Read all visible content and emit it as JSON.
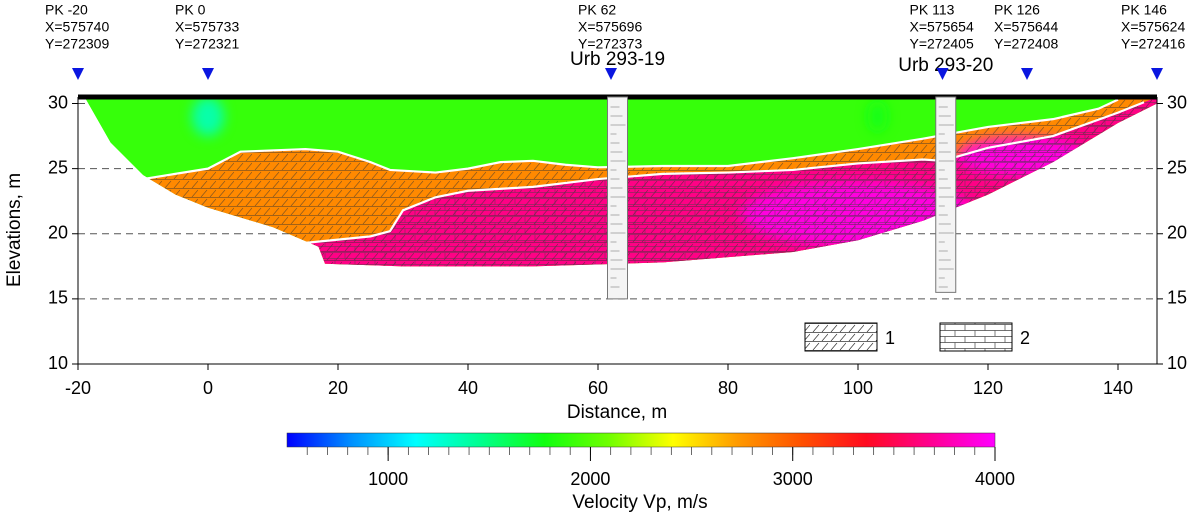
{
  "chart_data": {
    "type": "tomography",
    "xlabel": "Distance, m",
    "ylabel": "Elevations, m",
    "xlim": [
      -20,
      146
    ],
    "ylim": [
      10,
      30.5
    ],
    "xticks": [
      -20,
      0,
      20,
      40,
      60,
      80,
      100,
      120,
      140
    ],
    "yticks": [
      10,
      15,
      20,
      25,
      30
    ],
    "grid": true,
    "colorbar": {
      "label": "Velocity Vp, m/s",
      "clim": [
        500,
        4000
      ],
      "ticks": [
        1000,
        2000,
        3000,
        4000
      ],
      "colormap": [
        "#0000ff",
        "#0090ff",
        "#00ffff",
        "#00ff90",
        "#10ff10",
        "#70ff00",
        "#ffff00",
        "#ff9a00",
        "#ff5000",
        "#ff0a20",
        "#ff0090",
        "#ff00ff"
      ]
    },
    "model_outline": {
      "x": [
        -19,
        146,
        146,
        140,
        130,
        120,
        110,
        100,
        90,
        70,
        50,
        30,
        18,
        17,
        10,
        0,
        -5,
        -10,
        -15
      ],
      "y": [
        30.5,
        30.5,
        30,
        28.5,
        25.5,
        23,
        21,
        19.5,
        18.6,
        17.8,
        17.5,
        17.5,
        17.7,
        19,
        20.5,
        22,
        23,
        24.5,
        27
      ]
    },
    "layers": [
      {
        "velocity": 1900
      },
      {
        "velocity": 2800,
        "hatch": "slant"
      },
      {
        "velocity": 3650,
        "hatch": "brick"
      }
    ],
    "boundaries": [
      {
        "x": [
          -10,
          0,
          5,
          15,
          20,
          25,
          28,
          35,
          40,
          45,
          50,
          55,
          60,
          70,
          80,
          90,
          100,
          110,
          120,
          130,
          137,
          140
        ],
        "y": [
          24.2,
          25,
          26.3,
          26.5,
          26.3,
          25.5,
          24.9,
          24.7,
          25,
          25.5,
          25.6,
          25.3,
          25.1,
          25.2,
          25.2,
          25.8,
          26.5,
          27.3,
          28.2,
          28.8,
          29.6,
          30.3
        ]
      },
      {
        "x": [
          15,
          25,
          28,
          30,
          35,
          40,
          50,
          60,
          70,
          80,
          90,
          100,
          110,
          113,
          120,
          130,
          140,
          144
        ],
        "y": [
          19.3,
          19.8,
          20.2,
          21.8,
          22.8,
          23.3,
          23.6,
          24.2,
          24.6,
          24.7,
          24.9,
          25.4,
          25.7,
          25.6,
          26.6,
          27.5,
          29.3,
          30.1
        ]
      }
    ],
    "anomalies": [
      {
        "x": 0,
        "y": 29,
        "rx": 2.5,
        "ry": 1.5,
        "velocity": 1300
      },
      {
        "x": 103,
        "y": 29,
        "rx": 1.5,
        "ry": 1.2,
        "velocity": 1750
      },
      {
        "x": 100,
        "y": 21.5,
        "rx": 18,
        "ry": 2.5,
        "velocity": 3950
      },
      {
        "x": 125,
        "y": 26,
        "rx": 10,
        "ry": 1.5,
        "velocity": 3950
      }
    ],
    "markers": [
      {
        "x": -20,
        "lines": [
          "PK -20",
          "X=575740",
          "Y=272309"
        ]
      },
      {
        "x": 0,
        "lines": [
          "PK 0",
          "X=575733",
          "Y=272321"
        ]
      },
      {
        "x": 62,
        "lines": [
          "PK 62",
          "X=575696",
          "Y=272373"
        ]
      },
      {
        "x": 113,
        "lines": [
          "PK 113",
          "X=575654",
          "Y=272405"
        ]
      },
      {
        "x": 126,
        "lines": [
          "PK 126",
          "X=575644",
          "Y=272408"
        ]
      },
      {
        "x": 146,
        "lines": [
          "PK 146",
          "X=575624",
          "Y=272416"
        ]
      }
    ],
    "boreholes": [
      {
        "name": "Urb 293-19",
        "x": 63,
        "top": 30.5,
        "bottom": 15
      },
      {
        "name": "Urb 293-20",
        "x": 113.5,
        "top": 30.5,
        "bottom": 15.5
      }
    ],
    "legend": [
      {
        "label": "1",
        "hatch": "slant"
      },
      {
        "label": "2",
        "hatch": "brick"
      }
    ]
  }
}
